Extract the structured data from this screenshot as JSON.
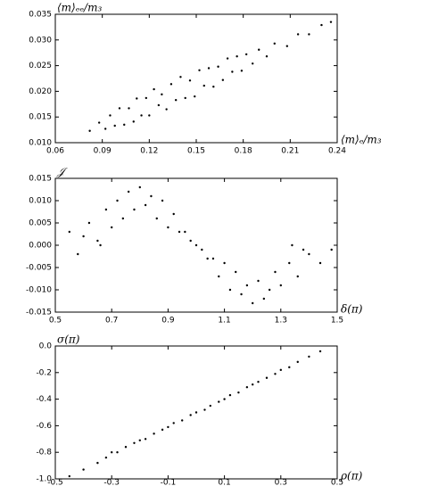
{
  "chart_data": [
    {
      "type": "scatter",
      "ylabel": "⟨m⟩ₑₑ/m₃",
      "xlabel": "⟨m⟩ₑ/m₃",
      "color": "#000000",
      "grid": false,
      "xlim": [
        0.06,
        0.24
      ],
      "ylim": [
        0.01,
        0.035
      ],
      "xticks": [
        0.06,
        0.09,
        0.12,
        0.15,
        0.18,
        0.21,
        0.24
      ],
      "yticks": [
        {
          "value": 0.01,
          "label": "0.010"
        },
        0.015,
        {
          "value": 0.02,
          "label": "0.020"
        },
        0.025,
        {
          "value": 0.03,
          "label": "0.030"
        },
        0.035
      ],
      "x": [
        0.082,
        0.088,
        0.092,
        0.095,
        0.098,
        0.101,
        0.104,
        0.107,
        0.11,
        0.112,
        0.115,
        0.118,
        0.12,
        0.123,
        0.126,
        0.128,
        0.131,
        0.134,
        0.137,
        0.14,
        0.143,
        0.146,
        0.149,
        0.152,
        0.155,
        0.158,
        0.161,
        0.164,
        0.167,
        0.17,
        0.173,
        0.176,
        0.179,
        0.182,
        0.186,
        0.19,
        0.195,
        0.2,
        0.208,
        0.215,
        0.222,
        0.23,
        0.236
      ],
      "values": [
        0.0123,
        0.0139,
        0.0127,
        0.0153,
        0.0133,
        0.0167,
        0.0135,
        0.0167,
        0.0141,
        0.0186,
        0.0153,
        0.0187,
        0.0153,
        0.0204,
        0.0173,
        0.0194,
        0.0165,
        0.0214,
        0.0183,
        0.0228,
        0.0187,
        0.0221,
        0.019,
        0.0241,
        0.0211,
        0.0245,
        0.0209,
        0.0248,
        0.0222,
        0.0264,
        0.0238,
        0.0268,
        0.024,
        0.0272,
        0.0254,
        0.0281,
        0.0268,
        0.0293,
        0.0288,
        0.0311,
        0.0311,
        0.0329,
        0.0335
      ]
    },
    {
      "type": "scatter",
      "ylabel": "𝒥",
      "xlabel": "δ(π)",
      "color": "#000000",
      "grid": false,
      "xlim": [
        0.5,
        1.5
      ],
      "ylim": [
        -0.015,
        0.015
      ],
      "xticks": [
        0.5,
        0.7,
        0.9,
        1.1,
        1.3,
        1.5
      ],
      "yticks": [
        -0.015,
        {
          "value": -0.01,
          "label": "-0.010"
        },
        -0.005,
        {
          "value": 0,
          "label": "0.000"
        },
        0.005,
        {
          "value": 0.01,
          "label": "0.010"
        },
        0.015
      ],
      "x": [
        0.55,
        0.58,
        0.62,
        0.65,
        0.68,
        0.7,
        0.72,
        0.74,
        0.76,
        0.78,
        0.8,
        0.82,
        0.84,
        0.86,
        0.88,
        0.9,
        0.92,
        0.94,
        0.96,
        0.98,
        1.0,
        1.02,
        1.04,
        1.06,
        1.08,
        1.1,
        1.12,
        1.14,
        1.16,
        1.18,
        1.2,
        1.22,
        1.24,
        1.26,
        1.28,
        1.3,
        1.33,
        1.36,
        1.4,
        1.44,
        1.48,
        0.6,
        1.38,
        0.66,
        1.34
      ],
      "values": [
        0.003,
        -0.002,
        0.005,
        0.001,
        0.008,
        0.004,
        0.01,
        0.006,
        0.012,
        0.008,
        0.013,
        0.009,
        0.011,
        0.006,
        0.01,
        0.004,
        0.007,
        0.003,
        0.003,
        0.001,
        0,
        -0.001,
        -0.003,
        -0.003,
        -0.007,
        -0.004,
        -0.01,
        -0.006,
        -0.011,
        -0.009,
        -0.013,
        -0.008,
        -0.012,
        -0.01,
        -0.006,
        -0.009,
        -0.004,
        -0.007,
        -0.002,
        -0.004,
        -0.001,
        0.002,
        -0.001,
        0,
        0
      ]
    },
    {
      "type": "scatter",
      "ylabel": "σ(π)",
      "xlabel": "ρ(π)",
      "color": "#000000",
      "grid": false,
      "xlim": [
        -0.5,
        0.5
      ],
      "ylim": [
        -1,
        0
      ],
      "xticks": [
        -0.5,
        -0.3,
        -0.1,
        0.1,
        0.3,
        0.5
      ],
      "yticks": [
        {
          "value": -1,
          "label": "-1.0"
        },
        -0.8,
        -0.6,
        -0.4,
        -0.2,
        {
          "value": 0,
          "label": "0.0"
        }
      ],
      "x": [
        -0.45,
        -0.4,
        -0.35,
        -0.32,
        -0.3,
        -0.28,
        -0.25,
        -0.22,
        -0.2,
        -0.18,
        -0.15,
        -0.12,
        -0.1,
        -0.08,
        -0.05,
        -0.02,
        0,
        0.03,
        0.05,
        0.08,
        0.1,
        0.12,
        0.15,
        0.18,
        0.2,
        0.22,
        0.25,
        0.28,
        0.3,
        0.33,
        0.36,
        0.4,
        0.44
      ],
      "values": [
        -0.98,
        -0.93,
        -0.88,
        -0.84,
        -0.8,
        -0.8,
        -0.76,
        -0.73,
        -0.71,
        -0.7,
        -0.66,
        -0.63,
        -0.61,
        -0.58,
        -0.56,
        -0.52,
        -0.5,
        -0.48,
        -0.45,
        -0.42,
        -0.4,
        -0.37,
        -0.35,
        -0.31,
        -0.29,
        -0.27,
        -0.24,
        -0.21,
        -0.18,
        -0.16,
        -0.12,
        -0.08,
        -0.04
      ]
    }
  ]
}
